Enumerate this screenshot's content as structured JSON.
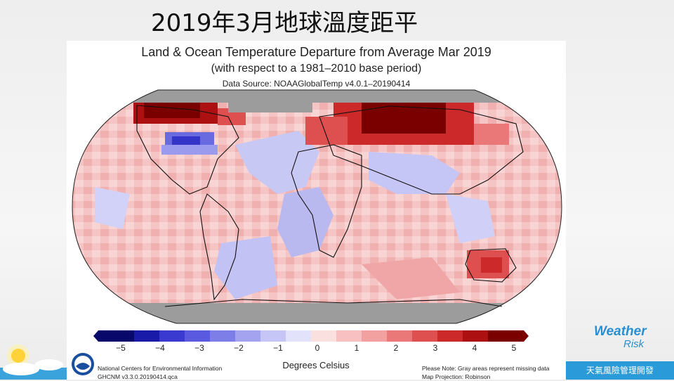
{
  "slide": {
    "title": "2019年3月地球溫度距平"
  },
  "figure": {
    "title": "Land & Ocean Temperature Departure from Average Mar 2019",
    "subtitle": "(with respect to a 1981–2010 base period)",
    "source": "Data Source: NOAAGlobalTemp v4.0.1–20190414",
    "colorbar": {
      "ticks": [
        "−5",
        "−4",
        "−3",
        "−2",
        "−1",
        "0",
        "1",
        "2",
        "3",
        "4",
        "5"
      ],
      "range": [
        -5,
        5
      ],
      "label": "Degrees Celsius",
      "colors": [
        "#08086b",
        "#1a1aa8",
        "#3a3ad0",
        "#5a5ae0",
        "#7e7ee8",
        "#a3a3f0",
        "#c6c6f6",
        "#e2e2fa",
        "#fbe0e0",
        "#f8c0c0",
        "#f2a0a0",
        "#ea7878",
        "#de5050",
        "#cc2a2a",
        "#ad1010",
        "#7a0000"
      ]
    },
    "credit_left": [
      "National Centers for Environmental Information",
      "GHCNM v3.3.0.20190414.qca"
    ],
    "credit_right": [
      "Please Note: Gray areas represent missing data",
      "Map Projection: Robinson"
    ],
    "missing_color": "#9c9c9c"
  },
  "brand": {
    "logo_word_1": "Weather",
    "logo_word_2": "Risk",
    "tagline": "天氣風險管理開發",
    "accent": "#2a9ad8"
  },
  "icons": [
    "noaa-logo-icon",
    "sun-icon",
    "cloud-icon"
  ]
}
